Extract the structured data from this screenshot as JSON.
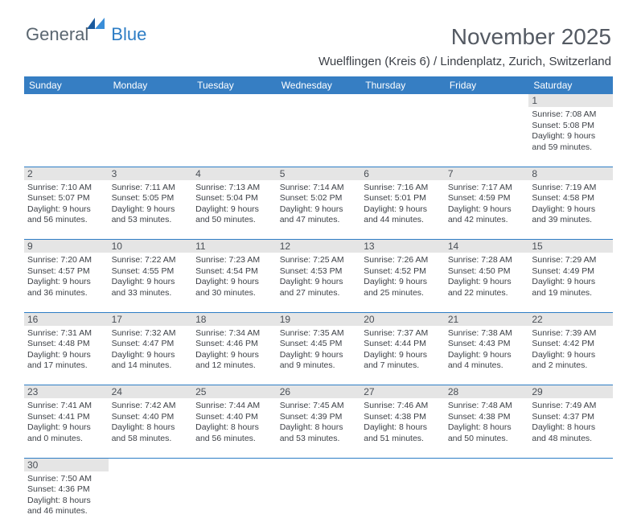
{
  "brand": {
    "part1": "General",
    "part2": "Blue"
  },
  "title": "November 2025",
  "location": "Wuelflingen (Kreis 6) / Lindenplatz, Zurich, Switzerland",
  "colors": {
    "header_bg": "#367ec3",
    "header_text": "#ffffff",
    "border": "#2d7dc5",
    "daynum_bg": "#e5e5e5",
    "text": "#3d4147",
    "title": "#545a63",
    "logo_gray": "#5a6670",
    "logo_blue": "#2d7dc5"
  },
  "weekdays": [
    "Sunday",
    "Monday",
    "Tuesday",
    "Wednesday",
    "Thursday",
    "Friday",
    "Saturday"
  ],
  "weeks": [
    [
      null,
      null,
      null,
      null,
      null,
      null,
      {
        "n": "1",
        "sr": "7:08 AM",
        "ss": "5:08 PM",
        "dl": "9 hours and 59 minutes."
      }
    ],
    [
      {
        "n": "2",
        "sr": "7:10 AM",
        "ss": "5:07 PM",
        "dl": "9 hours and 56 minutes."
      },
      {
        "n": "3",
        "sr": "7:11 AM",
        "ss": "5:05 PM",
        "dl": "9 hours and 53 minutes."
      },
      {
        "n": "4",
        "sr": "7:13 AM",
        "ss": "5:04 PM",
        "dl": "9 hours and 50 minutes."
      },
      {
        "n": "5",
        "sr": "7:14 AM",
        "ss": "5:02 PM",
        "dl": "9 hours and 47 minutes."
      },
      {
        "n": "6",
        "sr": "7:16 AM",
        "ss": "5:01 PM",
        "dl": "9 hours and 44 minutes."
      },
      {
        "n": "7",
        "sr": "7:17 AM",
        "ss": "4:59 PM",
        "dl": "9 hours and 42 minutes."
      },
      {
        "n": "8",
        "sr": "7:19 AM",
        "ss": "4:58 PM",
        "dl": "9 hours and 39 minutes."
      }
    ],
    [
      {
        "n": "9",
        "sr": "7:20 AM",
        "ss": "4:57 PM",
        "dl": "9 hours and 36 minutes."
      },
      {
        "n": "10",
        "sr": "7:22 AM",
        "ss": "4:55 PM",
        "dl": "9 hours and 33 minutes."
      },
      {
        "n": "11",
        "sr": "7:23 AM",
        "ss": "4:54 PM",
        "dl": "9 hours and 30 minutes."
      },
      {
        "n": "12",
        "sr": "7:25 AM",
        "ss": "4:53 PM",
        "dl": "9 hours and 27 minutes."
      },
      {
        "n": "13",
        "sr": "7:26 AM",
        "ss": "4:52 PM",
        "dl": "9 hours and 25 minutes."
      },
      {
        "n": "14",
        "sr": "7:28 AM",
        "ss": "4:50 PM",
        "dl": "9 hours and 22 minutes."
      },
      {
        "n": "15",
        "sr": "7:29 AM",
        "ss": "4:49 PM",
        "dl": "9 hours and 19 minutes."
      }
    ],
    [
      {
        "n": "16",
        "sr": "7:31 AM",
        "ss": "4:48 PM",
        "dl": "9 hours and 17 minutes."
      },
      {
        "n": "17",
        "sr": "7:32 AM",
        "ss": "4:47 PM",
        "dl": "9 hours and 14 minutes."
      },
      {
        "n": "18",
        "sr": "7:34 AM",
        "ss": "4:46 PM",
        "dl": "9 hours and 12 minutes."
      },
      {
        "n": "19",
        "sr": "7:35 AM",
        "ss": "4:45 PM",
        "dl": "9 hours and 9 minutes."
      },
      {
        "n": "20",
        "sr": "7:37 AM",
        "ss": "4:44 PM",
        "dl": "9 hours and 7 minutes."
      },
      {
        "n": "21",
        "sr": "7:38 AM",
        "ss": "4:43 PM",
        "dl": "9 hours and 4 minutes."
      },
      {
        "n": "22",
        "sr": "7:39 AM",
        "ss": "4:42 PM",
        "dl": "9 hours and 2 minutes."
      }
    ],
    [
      {
        "n": "23",
        "sr": "7:41 AM",
        "ss": "4:41 PM",
        "dl": "9 hours and 0 minutes."
      },
      {
        "n": "24",
        "sr": "7:42 AM",
        "ss": "4:40 PM",
        "dl": "8 hours and 58 minutes."
      },
      {
        "n": "25",
        "sr": "7:44 AM",
        "ss": "4:40 PM",
        "dl": "8 hours and 56 minutes."
      },
      {
        "n": "26",
        "sr": "7:45 AM",
        "ss": "4:39 PM",
        "dl": "8 hours and 53 minutes."
      },
      {
        "n": "27",
        "sr": "7:46 AM",
        "ss": "4:38 PM",
        "dl": "8 hours and 51 minutes."
      },
      {
        "n": "28",
        "sr": "7:48 AM",
        "ss": "4:38 PM",
        "dl": "8 hours and 50 minutes."
      },
      {
        "n": "29",
        "sr": "7:49 AM",
        "ss": "4:37 PM",
        "dl": "8 hours and 48 minutes."
      }
    ],
    [
      {
        "n": "30",
        "sr": "7:50 AM",
        "ss": "4:36 PM",
        "dl": "8 hours and 46 minutes."
      },
      null,
      null,
      null,
      null,
      null,
      null
    ]
  ],
  "labels": {
    "sunrise": "Sunrise:",
    "sunset": "Sunset:",
    "daylight": "Daylight:"
  }
}
